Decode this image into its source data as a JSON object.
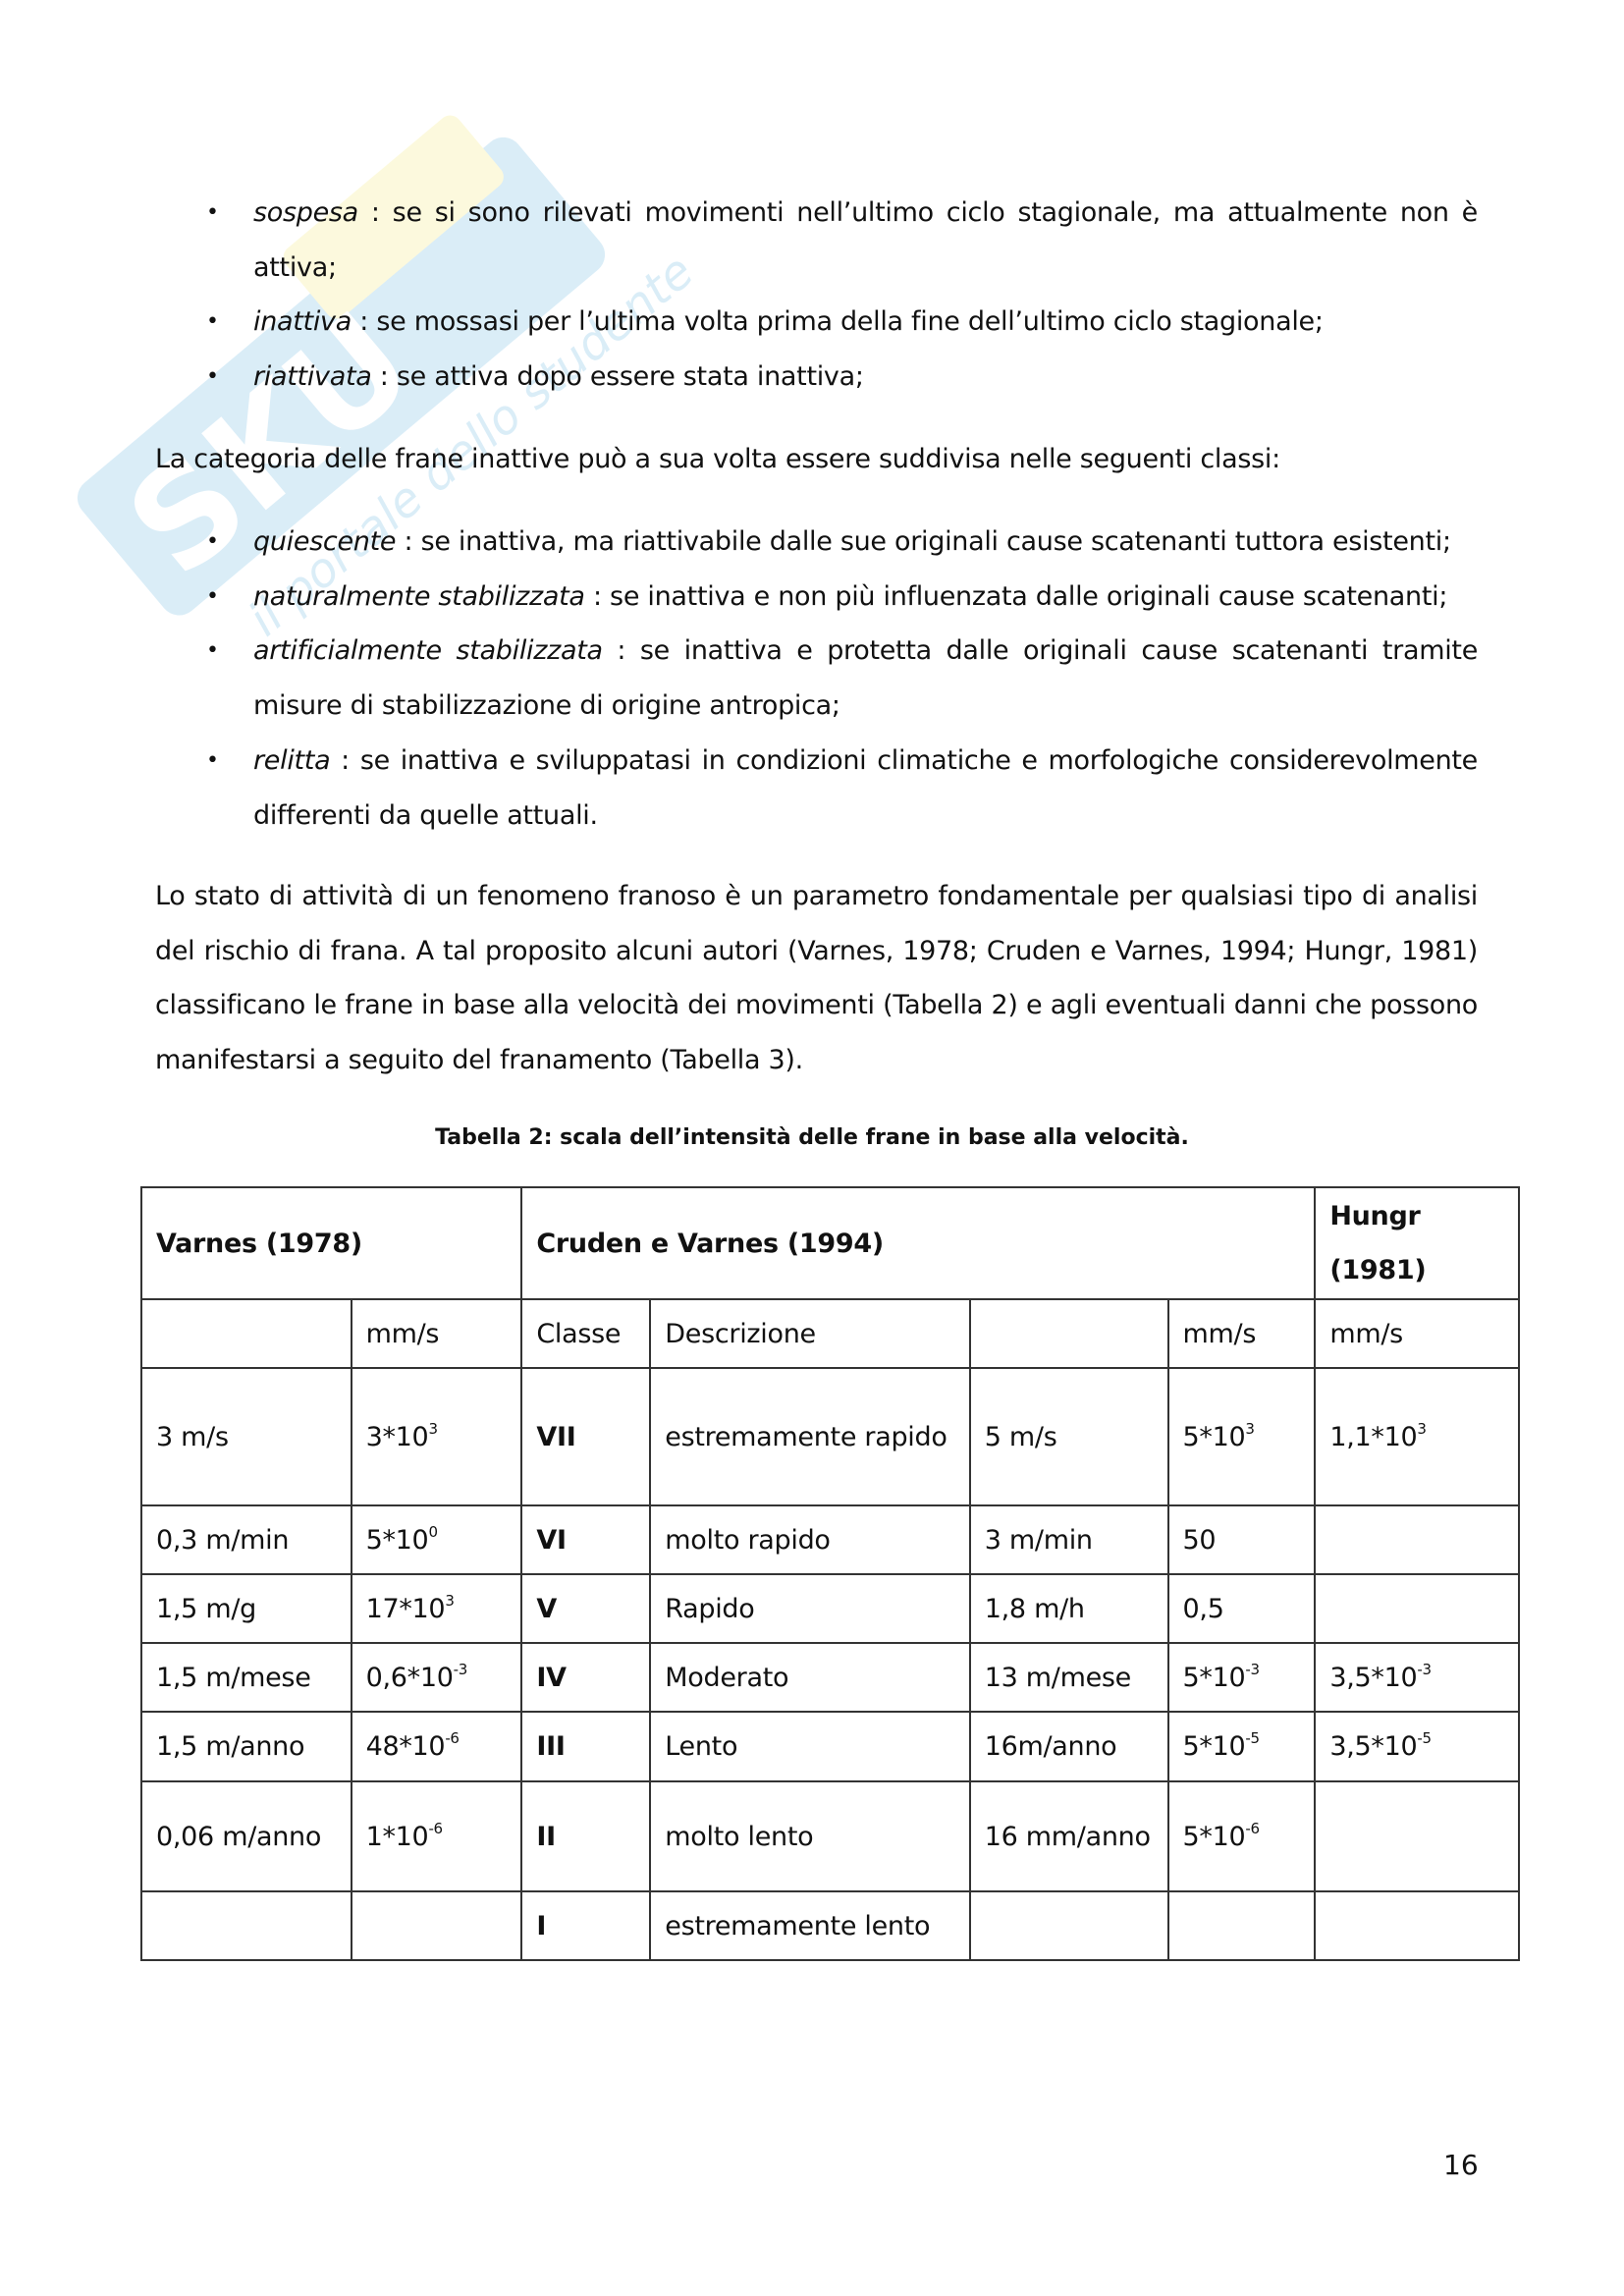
{
  "watermark": {
    "text": "SKUOLA.net",
    "tagline": "il portale dello studente",
    "colors": [
      "#3aa0d8",
      "#f2e24a"
    ]
  },
  "list1": [
    {
      "term": "sospesa",
      "text": " : se si sono rilevati movimenti nell’ultimo ciclo stagionale, ma attualmente non è attiva;"
    },
    {
      "term": "inattiva",
      "text": " : se mossasi per l’ultima volta prima della fine dell’ultimo ciclo stagionale;"
    },
    {
      "term": "riattivata",
      "text": " : se attiva dopo essere stata inattiva;"
    }
  ],
  "para1": "La categoria delle frane inattive può a sua volta essere suddivisa nelle seguenti classi:",
  "list2": [
    {
      "term": "quiescente",
      "text": " : se inattiva, ma riattivabile dalle sue originali cause scatenanti tuttora esistenti;"
    },
    {
      "term": "naturalmente stabilizzata",
      "text": " : se inattiva e non più influenzata dalle originali cause scatenanti;"
    },
    {
      "term": "artificialmente stabilizzata",
      "text": " : se inattiva e protetta dalle originali cause scatenanti tramite misure di stabilizzazione di origine antropica;"
    },
    {
      "term": "relitta",
      "text": " : se inattiva e sviluppatasi in condizioni climatiche e morfologiche considerevolmente differenti da quelle attuali."
    }
  ],
  "para2": "Lo stato di attività di un fenomeno franoso è un parametro fondamentale per qualsiasi tipo di analisi del rischio di frana. A tal proposito alcuni autori (Varnes, 1978; Cruden e Varnes, 1994; Hungr, 1981) classificano le frane in base alla velocità dei movimenti (Tabella 2) e agli eventuali danni che possono manifestarsi a seguito del franamento (Tabella 3).",
  "caption": "Tabella 2: scala dell’intensità delle frane in base alla velocità.",
  "table": {
    "group_headers": [
      "Varnes (1978)",
      "Cruden e Varnes (1994)",
      "Hungr (1981)"
    ],
    "sub_headers": [
      "",
      "mm/s",
      "Classe",
      "Descrizione",
      "",
      "mm/s",
      "mm/s"
    ],
    "rows": [
      [
        {
          "t": "3 m/s"
        },
        {
          "t": "3*10",
          "s": "3"
        },
        {
          "t": "VII"
        },
        {
          "t": "estremamente rapido"
        },
        {
          "t": "5 m/s"
        },
        {
          "t": "5*10",
          "s": "3"
        },
        {
          "t": "1,1*10",
          "s": "3"
        }
      ],
      [
        {
          "t": "0,3 m/min"
        },
        {
          "t": "5*10",
          "s": "0"
        },
        {
          "t": "VI"
        },
        {
          "t": "molto rapido"
        },
        {
          "t": "3 m/min"
        },
        {
          "t": "50"
        },
        {
          "t": ""
        }
      ],
      [
        {
          "t": "1,5 m/g"
        },
        {
          "t": "17*10",
          "s": "3"
        },
        {
          "t": "V"
        },
        {
          "t": "Rapido"
        },
        {
          "t": "1,8 m/h"
        },
        {
          "t": "0,5"
        },
        {
          "t": ""
        }
      ],
      [
        {
          "t": "1,5 m/mese"
        },
        {
          "t": "0,6*10",
          "s": "-3"
        },
        {
          "t": "IV"
        },
        {
          "t": "Moderato"
        },
        {
          "t": "13 m/mese"
        },
        {
          "t": "5*10",
          "s": "-3"
        },
        {
          "t": "3,5*10",
          "s": "-3"
        }
      ],
      [
        {
          "t": "1,5 m/anno"
        },
        {
          "t": "48*10",
          "s": "-6"
        },
        {
          "t": "III"
        },
        {
          "t": "Lento"
        },
        {
          "t": "16m/anno"
        },
        {
          "t": "5*10",
          "s": "-5"
        },
        {
          "t": "3,5*10",
          "s": "-5"
        }
      ],
      [
        {
          "t": "0,06 m/anno"
        },
        {
          "t": "1*10",
          "s": "-6"
        },
        {
          "t": "II"
        },
        {
          "t": "molto lento"
        },
        {
          "t": "16 mm/anno"
        },
        {
          "t": "5*10",
          "s": "-6"
        },
        {
          "t": ""
        }
      ],
      [
        {
          "t": ""
        },
        {
          "t": ""
        },
        {
          "t": "I"
        },
        {
          "t": "estremamente lento"
        },
        {
          "t": ""
        },
        {
          "t": ""
        },
        {
          "t": ""
        }
      ]
    ]
  },
  "page_number": "16"
}
